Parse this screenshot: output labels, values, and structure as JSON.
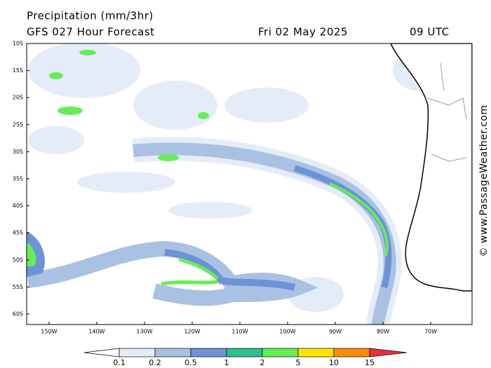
{
  "header": {
    "title": "Precipitation (mm/3hr)",
    "subtitle": "GFS 027 Hour Forecast",
    "date": "Fri 02 May 2025",
    "time": "09 UTC"
  },
  "lat_labels": [
    "10S",
    "15S",
    "20S",
    "25S",
    "30S",
    "35S",
    "40S",
    "45S",
    "50S",
    "55S",
    "60S"
  ],
  "lon_labels": [
    "150W",
    "140W",
    "130W",
    "120W",
    "110W",
    "100W",
    "90W",
    "80W",
    "70W"
  ],
  "legend": {
    "labels": [
      "0.1",
      "0.2",
      "0.5",
      "1",
      "2",
      "5",
      "10",
      "15"
    ],
    "colors": [
      "#ffffff",
      "#e4ecf8",
      "#a9c1e3",
      "#6e92d8",
      "#2fbf8e",
      "#66ee55",
      "#ffe400",
      "#ff8c00",
      "#e8303f"
    ]
  },
  "watermark": "© www.PassageWeather.com"
}
